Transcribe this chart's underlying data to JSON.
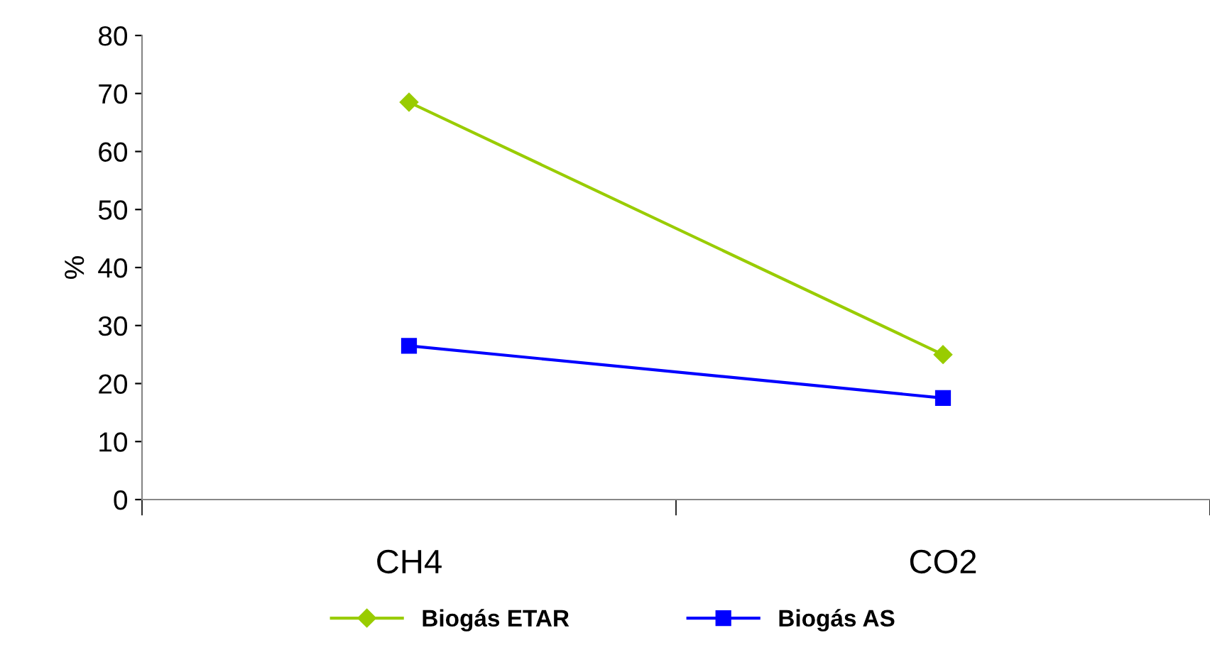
{
  "chart_data": {
    "type": "line",
    "ylabel": "%",
    "categories": [
      "CH4",
      "CO2"
    ],
    "series": [
      {
        "name": "Biogás ETAR",
        "color": "#99cc00",
        "marker": "diamond",
        "values": [
          68.5,
          25
        ]
      },
      {
        "name": "Biogás AS",
        "color": "#0000ff",
        "marker": "square",
        "values": [
          26.5,
          17.5
        ]
      }
    ],
    "ylim": [
      0,
      80
    ],
    "yticks": [
      0,
      10,
      20,
      30,
      40,
      50,
      60,
      70,
      80
    ],
    "grid": false,
    "legend": "bottom"
  }
}
